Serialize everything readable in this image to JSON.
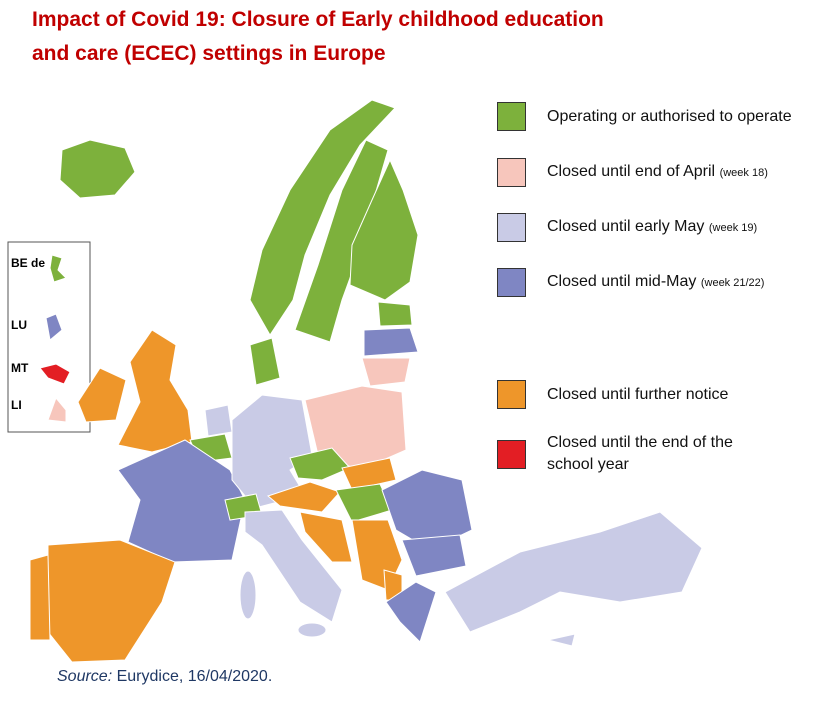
{
  "title": [
    "Impact of Covid 19: Closure of Early childhood education",
    "and care (ECEC) settings in Europe"
  ],
  "legend": [
    {
      "label": "Operating or authorised to operate",
      "color": "#7db13c"
    },
    {
      "label": "Closed until end of April",
      "note": "(week 18)",
      "color": "#f7c6bc"
    },
    {
      "label": "Closed until early May",
      "note": "(week 19)",
      "color": "#c9cbe6"
    },
    {
      "label": "Closed until mid-May",
      "note": "(week 21/22)",
      "color": "#7f86c3"
    },
    {
      "label": "Closed until further notice",
      "color": "#ee962a"
    },
    {
      "label": "Closed until the end of the school year",
      "color": "#e31e24"
    }
  ],
  "inset": [
    "BE de",
    "LU",
    "MT",
    "LI"
  ],
  "source": {
    "label": "Source:",
    "text": "Eurydice, 16/04/2020."
  }
}
